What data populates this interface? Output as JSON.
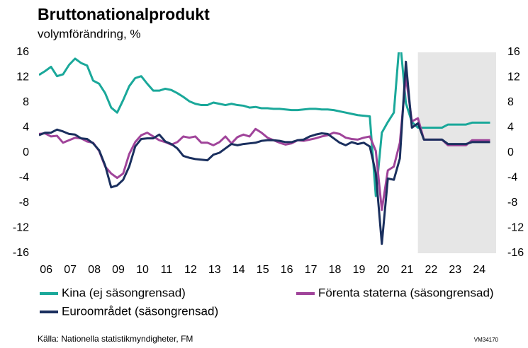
{
  "chart_data": {
    "type": "line",
    "title": "Bruttonationalprodukt",
    "subtitle": "volymförändring, %",
    "source": "Källa: Nationella statistikmyndigheter, FM",
    "code": "VM34170",
    "forecast_start": 2021.75,
    "forecast_color": "#e6e6e6",
    "xlim": [
      2006,
      2025
    ],
    "xticks": [
      {
        "value": 2006,
        "label": "06"
      },
      {
        "value": 2007,
        "label": "07"
      },
      {
        "value": 2008,
        "label": "08"
      },
      {
        "value": 2009,
        "label": "09"
      },
      {
        "value": 2010,
        "label": "10"
      },
      {
        "value": 2011,
        "label": "11"
      },
      {
        "value": 2012,
        "label": "12"
      },
      {
        "value": 2013,
        "label": "13"
      },
      {
        "value": 2014,
        "label": "14"
      },
      {
        "value": 2015,
        "label": "15"
      },
      {
        "value": 2016,
        "label": "16"
      },
      {
        "value": 2017,
        "label": "17"
      },
      {
        "value": 2018,
        "label": "18"
      },
      {
        "value": 2019,
        "label": "19"
      },
      {
        "value": 2020,
        "label": "20"
      },
      {
        "value": 2021,
        "label": "21"
      },
      {
        "value": 2022,
        "label": "22"
      },
      {
        "value": 2023,
        "label": "23"
      },
      {
        "value": 2024,
        "label": "24"
      }
    ],
    "ylim": [
      -16,
      16
    ],
    "yticks": [
      16,
      12,
      8,
      4,
      0,
      -4,
      -8,
      -12,
      -16
    ],
    "y2lim": [
      -16,
      16
    ],
    "y2ticks": [
      16,
      12,
      8,
      4,
      0,
      -4,
      -8,
      -12,
      -16
    ],
    "x": [
      2006,
      2006.25,
      2006.5,
      2006.75,
      2007,
      2007.25,
      2007.5,
      2007.75,
      2008,
      2008.25,
      2008.5,
      2008.75,
      2009,
      2009.25,
      2009.5,
      2009.75,
      2010,
      2010.25,
      2010.5,
      2010.75,
      2011,
      2011.25,
      2011.5,
      2011.75,
      2012,
      2012.25,
      2012.5,
      2012.75,
      2013,
      2013.25,
      2013.5,
      2013.75,
      2014,
      2014.25,
      2014.5,
      2014.75,
      2015,
      2015.25,
      2015.5,
      2015.75,
      2016,
      2016.25,
      2016.5,
      2016.75,
      2017,
      2017.25,
      2017.5,
      2017.75,
      2018,
      2018.25,
      2018.5,
      2018.75,
      2019,
      2019.25,
      2019.5,
      2019.75,
      2020,
      2020.25,
      2020.5,
      2020.75,
      2021,
      2021.25,
      2021.5,
      2021.75,
      2022,
      2022.25,
      2022.5,
      2022.75,
      2023,
      2023.25,
      2023.5,
      2023.75,
      2024,
      2024.25,
      2024.5,
      2024.75
    ],
    "series": [
      {
        "name": "Kina (ej säsongrensad)",
        "color": "#1aa89a",
        "values": [
          12.4,
          13.0,
          13.7,
          12.2,
          12.5,
          14.0,
          15.0,
          14.3,
          13.9,
          11.5,
          11.0,
          9.5,
          7.2,
          6.4,
          8.4,
          10.6,
          11.9,
          12.2,
          11.0,
          9.9,
          9.9,
          10.2,
          10.0,
          9.5,
          8.9,
          8.2,
          7.8,
          7.6,
          7.6,
          8.0,
          7.8,
          7.6,
          7.8,
          7.6,
          7.5,
          7.2,
          7.3,
          7.1,
          7.1,
          7.0,
          7.0,
          6.9,
          6.8,
          6.8,
          6.9,
          7.0,
          7.0,
          6.9,
          6.9,
          6.8,
          6.6,
          6.4,
          6.2,
          6.0,
          5.9,
          5.8,
          -6.9,
          3.2,
          4.9,
          6.4,
          18.3,
          7.9,
          4.9,
          4.0,
          4.0,
          4.0,
          4.0,
          4.0,
          4.5,
          4.5,
          4.5,
          4.5,
          4.8,
          4.8,
          4.8,
          4.8
        ]
      },
      {
        "name": "Förenta staterna (säsongrensad)",
        "color": "#a0449a",
        "values": [
          3.0,
          3.1,
          2.6,
          2.7,
          1.6,
          2.0,
          2.4,
          2.3,
          1.8,
          1.6,
          0.3,
          -2.2,
          -3.3,
          -4.0,
          -3.3,
          -0.2,
          1.7,
          2.8,
          3.2,
          2.6,
          2.0,
          1.7,
          1.3,
          1.7,
          2.6,
          2.4,
          2.6,
          1.6,
          1.6,
          1.2,
          1.7,
          2.6,
          1.5,
          2.5,
          2.9,
          2.6,
          3.8,
          3.2,
          2.4,
          2.0,
          1.6,
          1.3,
          1.5,
          2.0,
          1.9,
          2.1,
          2.3,
          2.6,
          2.8,
          3.2,
          3.0,
          2.4,
          2.2,
          2.1,
          2.4,
          2.6,
          0.3,
          -9.1,
          -2.8,
          -2.2,
          1.6,
          12.2,
          5.0,
          5.5,
          2.1,
          2.1,
          2.1,
          2.1,
          1.2,
          1.2,
          1.2,
          1.2,
          2.0,
          2.0,
          2.0,
          2.0
        ]
      },
      {
        "name": "Euroområdet (säsongrensad)",
        "color": "#1a2f5e",
        "values": [
          2.8,
          3.2,
          3.2,
          3.7,
          3.4,
          3.0,
          2.9,
          2.3,
          2.2,
          1.5,
          0.4,
          -2.0,
          -5.5,
          -5.2,
          -4.3,
          -2.2,
          1.0,
          2.2,
          2.3,
          2.3,
          2.9,
          1.8,
          1.4,
          0.7,
          -0.5,
          -0.8,
          -1.0,
          -1.1,
          -1.2,
          -0.3,
          0.0,
          0.7,
          1.4,
          1.2,
          1.4,
          1.5,
          1.6,
          1.9,
          2.0,
          2.0,
          1.9,
          1.7,
          1.7,
          2.0,
          2.1,
          2.6,
          2.9,
          3.1,
          3.0,
          2.3,
          1.6,
          1.2,
          1.7,
          1.4,
          1.6,
          1.0,
          -3.2,
          -14.5,
          -4.1,
          -4.3,
          -0.9,
          14.5,
          4.0,
          4.7,
          2.1,
          2.1,
          2.1,
          2.1,
          1.4,
          1.4,
          1.4,
          1.4,
          1.7,
          1.7,
          1.7,
          1.7
        ]
      }
    ]
  }
}
